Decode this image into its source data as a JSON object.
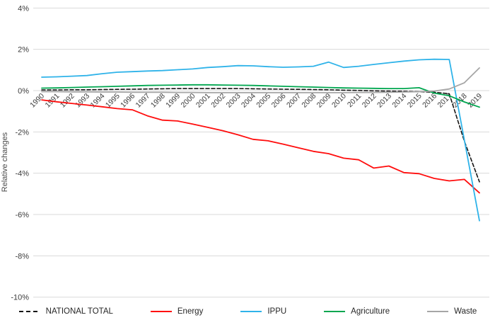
{
  "chart_data": {
    "type": "line",
    "title": "",
    "xlabel": "",
    "ylabel": "Relative changes",
    "ylim": [
      -10,
      4
    ],
    "grid": true,
    "legend_position": "bottom",
    "y_tick_labels": [
      "4%",
      "2%",
      "0%",
      "-2%",
      "-4%",
      "-6%",
      "-8%",
      "-10%"
    ],
    "y_tick_values": [
      4,
      2,
      0,
      -2,
      -4,
      -6,
      -8,
      -10
    ],
    "categories": [
      "1990",
      "1991",
      "1992",
      "1993",
      "1994",
      "1995",
      "1996",
      "1997",
      "1998",
      "1999",
      "2000",
      "2001",
      "2002",
      "2003",
      "2004",
      "2005",
      "2006",
      "2007",
      "2008",
      "2009",
      "2010",
      "2011",
      "2012",
      "2013",
      "2014",
      "2015",
      "2016",
      "2017",
      "2018",
      "2019"
    ],
    "series": [
      {
        "name": "NATIONAL TOTAL",
        "color": "#141414",
        "style": "dashed",
        "values": [
          0.03,
          0.03,
          0.04,
          0.04,
          0.05,
          0.06,
          0.07,
          0.08,
          0.09,
          0.1,
          0.1,
          0.1,
          0.1,
          0.1,
          0.09,
          0.08,
          0.07,
          0.06,
          0.05,
          0.04,
          0.02,
          0.01,
          -0.01,
          -0.02,
          -0.03,
          -0.05,
          -0.08,
          -0.15,
          -2.45,
          -4.42
        ]
      },
      {
        "name": "Energy",
        "color": "#ff0d0d",
        "style": "solid",
        "values": [
          -0.45,
          -0.54,
          -0.62,
          -0.7,
          -0.78,
          -0.87,
          -0.93,
          -1.22,
          -1.43,
          -1.47,
          -1.62,
          -1.78,
          -1.94,
          -2.14,
          -2.36,
          -2.43,
          -2.59,
          -2.77,
          -2.94,
          -3.05,
          -3.27,
          -3.35,
          -3.75,
          -3.65,
          -3.97,
          -4.02,
          -4.25,
          -4.37,
          -4.3,
          -4.95
        ]
      },
      {
        "name": "IPPU",
        "color": "#2fb3e9",
        "style": "solid",
        "values": [
          0.65,
          0.67,
          0.7,
          0.73,
          0.82,
          0.89,
          0.92,
          0.95,
          0.97,
          1.01,
          1.05,
          1.12,
          1.16,
          1.21,
          1.2,
          1.16,
          1.13,
          1.15,
          1.18,
          1.38,
          1.12,
          1.18,
          1.27,
          1.35,
          1.43,
          1.49,
          1.52,
          1.51,
          -2.4,
          -6.3
        ]
      },
      {
        "name": "Agriculture",
        "color": "#00a64f",
        "style": "solid",
        "values": [
          0.12,
          0.13,
          0.15,
          0.17,
          0.19,
          0.21,
          0.23,
          0.25,
          0.26,
          0.27,
          0.28,
          0.28,
          0.27,
          0.26,
          0.25,
          0.23,
          0.21,
          0.19,
          0.17,
          0.15,
          0.13,
          0.12,
          0.11,
          0.1,
          0.1,
          0.14,
          -0.12,
          -0.25,
          -0.55,
          -0.8
        ]
      },
      {
        "name": "Waste",
        "color": "#a6a6a6",
        "style": "solid",
        "values": [
          -0.05,
          -0.05,
          -0.06,
          -0.06,
          -0.07,
          -0.07,
          -0.08,
          -0.08,
          -0.08,
          -0.09,
          -0.09,
          -0.1,
          -0.1,
          -0.1,
          -0.1,
          -0.1,
          -0.1,
          -0.1,
          -0.1,
          -0.1,
          -0.1,
          -0.09,
          -0.09,
          -0.08,
          -0.07,
          -0.05,
          -0.02,
          0.08,
          0.38,
          1.1
        ]
      }
    ],
    "colors": {
      "gridline": "#d9d9d9",
      "tick_text": "#3b3b3b",
      "axis_title_text": "#4a4a4a",
      "legend_text": "#262626",
      "background": "#ffffff"
    }
  }
}
